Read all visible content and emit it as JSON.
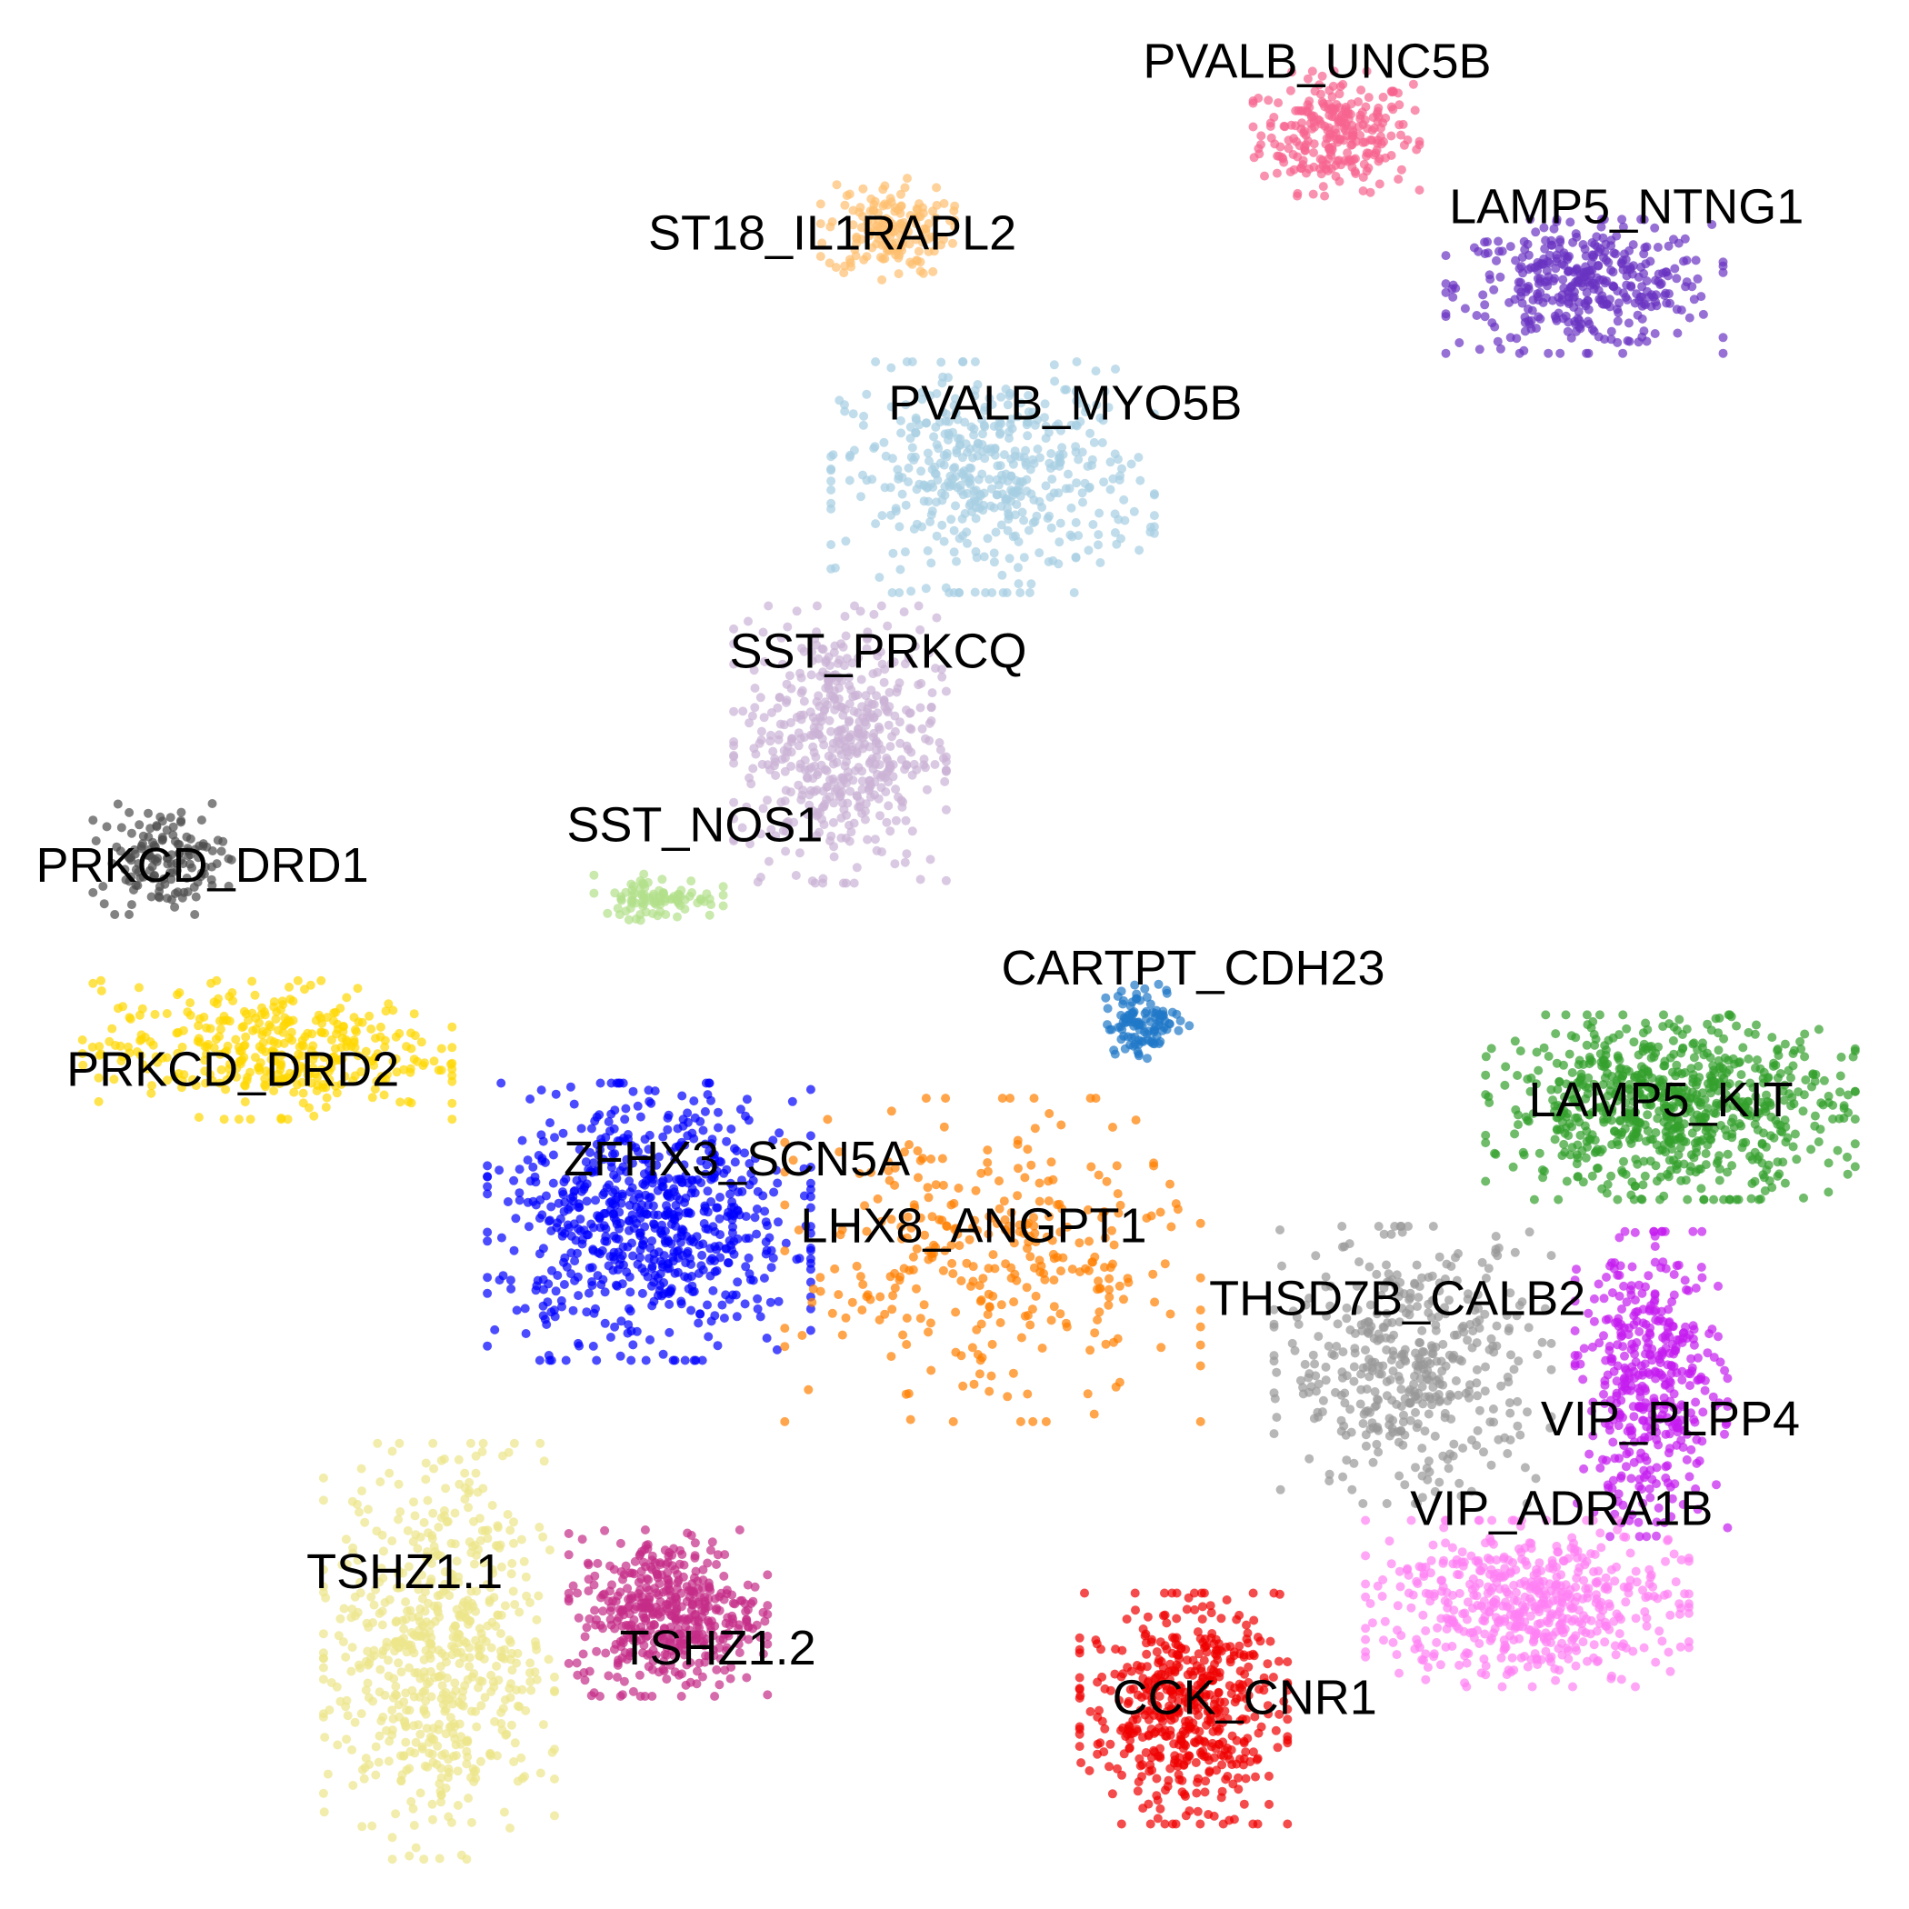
{
  "chart_data": {
    "type": "scatter",
    "title": "",
    "xlabel": "",
    "ylabel": "",
    "axes_visible": false,
    "grid": false,
    "legend": "none",
    "xlim": [
      0,
      100
    ],
    "ylim": [
      0,
      100
    ],
    "clusters": [
      {
        "name": "PVALB_UNC5B",
        "color": "#f7648f",
        "center": [
          70.0,
          93.0
        ],
        "spread": [
          3.6,
          2.7
        ],
        "count": 260
      },
      {
        "name": "LAMP5_NTNG1",
        "color": "#6a33c2",
        "center": [
          83.0,
          85.0
        ],
        "spread": [
          6.0,
          2.9
        ],
        "count": 380
      },
      {
        "name": "ST18_IL1RAPL2",
        "color": "#fdbf6f",
        "center": [
          46.5,
          88.0
        ],
        "spread": [
          2.9,
          2.2
        ],
        "count": 160
      },
      {
        "name": "PVALB_MYO5B",
        "color": "#a6cee3",
        "center": [
          52.0,
          75.0
        ],
        "spread": [
          7.0,
          5.0
        ],
        "count": 480
      },
      {
        "name": "SST_PRKCQ",
        "color": "#cab2d6",
        "center": [
          44.0,
          61.0
        ],
        "spread": [
          4.6,
          6.0
        ],
        "count": 520
      },
      {
        "name": "SST_NOS1",
        "color": "#b2df8a",
        "center": [
          34.5,
          53.0
        ],
        "spread": [
          2.8,
          1.0
        ],
        "count": 90
      },
      {
        "name": "PRKCD_DRD1",
        "color": "#4d4d4d",
        "center": [
          8.5,
          55.0
        ],
        "spread": [
          3.0,
          2.4
        ],
        "count": 140
      },
      {
        "name": "PRKCD_DRD2",
        "color": "#ffd700",
        "center": [
          14.0,
          45.0
        ],
        "spread": [
          8.0,
          3.0
        ],
        "count": 380
      },
      {
        "name": "CARTPT_CDH23",
        "color": "#1f78c8",
        "center": [
          60.0,
          46.5
        ],
        "spread": [
          1.9,
          1.6
        ],
        "count": 110
      },
      {
        "name": "ZFHX3_SCN5A",
        "color": "#0000ff",
        "center": [
          34.0,
          36.0
        ],
        "spread": [
          7.0,
          6.0
        ],
        "count": 720
      },
      {
        "name": "LHX8_ANGPT1",
        "color": "#ff7f00",
        "center": [
          52.0,
          34.0
        ],
        "spread": [
          9.0,
          7.0
        ],
        "count": 330
      },
      {
        "name": "LAMP5_KIT",
        "color": "#33a02c",
        "center": [
          87.5,
          42.0
        ],
        "spread": [
          8.0,
          4.0
        ],
        "count": 760
      },
      {
        "name": "THSD7B_CALB2",
        "color": "#999999",
        "center": [
          74.0,
          28.5
        ],
        "spread": [
          6.0,
          6.0
        ],
        "count": 440
      },
      {
        "name": "VIP_PLPP4",
        "color": "#c51bef",
        "center": [
          86.5,
          27.5
        ],
        "spread": [
          3.3,
          6.6
        ],
        "count": 420
      },
      {
        "name": "VIP_ADRA1B",
        "color": "#ff80f3",
        "center": [
          80.0,
          16.0
        ],
        "spread": [
          7.0,
          3.6
        ],
        "count": 540
      },
      {
        "name": "CCK_CNR1",
        "color": "#f00000",
        "center": [
          62.0,
          10.5
        ],
        "spread": [
          4.5,
          5.0
        ],
        "count": 520
      },
      {
        "name": "TSHZ1.1",
        "color": "#ede68a",
        "center": [
          23.0,
          13.5
        ],
        "spread": [
          5.0,
          9.0
        ],
        "count": 620
      },
      {
        "name": "TSHZ1.2",
        "color": "#c52c88",
        "center": [
          35.0,
          15.5
        ],
        "spread": [
          4.3,
          3.6
        ],
        "count": 460
      }
    ],
    "labels": [
      {
        "text": "PVALB_UNC5B",
        "x": 69.0,
        "y": 96.6
      },
      {
        "text": "LAMP5_NTNG1",
        "x": 85.2,
        "y": 89.0
      },
      {
        "text": "ST18_IL1RAPL2",
        "x": 43.6,
        "y": 87.6
      },
      {
        "text": "PVALB_MYO5B",
        "x": 55.8,
        "y": 78.7
      },
      {
        "text": "SST_PRKCQ",
        "x": 46.0,
        "y": 65.7
      },
      {
        "text": "SST_NOS1",
        "x": 36.4,
        "y": 56.6
      },
      {
        "text": "PRKCD_DRD1",
        "x": 10.6,
        "y": 54.5
      },
      {
        "text": "CARTPT_CDH23",
        "x": 62.5,
        "y": 49.1
      },
      {
        "text": "PRKCD_DRD2",
        "x": 12.2,
        "y": 43.8
      },
      {
        "text": "LAMP5_KIT",
        "x": 87.0,
        "y": 42.2
      },
      {
        "text": "ZFHX3_SCN5A",
        "x": 38.6,
        "y": 39.1
      },
      {
        "text": "LHX8_ANGPT1",
        "x": 51.0,
        "y": 35.6
      },
      {
        "text": "THSD7B_CALB2",
        "x": 73.2,
        "y": 31.8
      },
      {
        "text": "VIP_PLPP4",
        "x": 87.5,
        "y": 25.5
      },
      {
        "text": "VIP_ADRA1B",
        "x": 81.8,
        "y": 20.8
      },
      {
        "text": "TSHZ1.1",
        "x": 21.2,
        "y": 17.5
      },
      {
        "text": "TSHZ1.2",
        "x": 37.6,
        "y": 13.5
      },
      {
        "text": "CCK_CNR1",
        "x": 65.2,
        "y": 10.9
      }
    ]
  }
}
